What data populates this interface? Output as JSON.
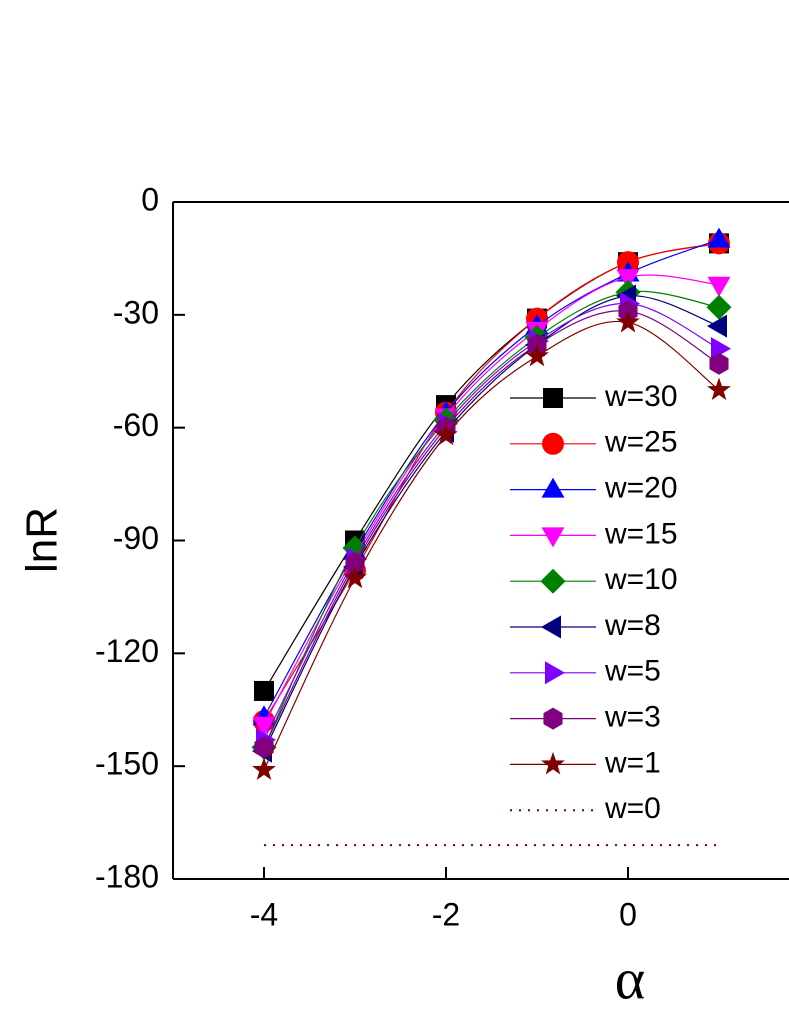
{
  "chart_data": {
    "type": "line",
    "x_label": "α",
    "y_label": "lnR",
    "x": [
      -4,
      -3,
      -2,
      -1,
      0,
      1
    ],
    "xlim": [
      -5,
      1.8
    ],
    "ylim": [
      -180,
      0
    ],
    "xticks": [
      -4,
      -2,
      0
    ],
    "yticks": [
      0,
      -30,
      -60,
      -90,
      -120,
      -150,
      -180
    ],
    "series": [
      {
        "name": "w=30",
        "color": "#000000",
        "marker": "square",
        "values": [
          -130,
          -90,
          -54,
          -31,
          -16,
          -11
        ]
      },
      {
        "name": "w=25",
        "color": "#ff0000",
        "marker": "circle",
        "values": [
          -138,
          -98,
          -56,
          -31,
          -16,
          -11
        ]
      },
      {
        "name": "w=20",
        "color": "#0000ff",
        "marker": "triangle-up",
        "values": [
          -137,
          -93,
          -56,
          -33,
          -19,
          -10
        ]
      },
      {
        "name": "w=15",
        "color": "#ff00ff",
        "marker": "triangle-down",
        "values": [
          -139,
          -94,
          -57,
          -34,
          -20,
          -22
        ]
      },
      {
        "name": "w=10",
        "color": "#008000",
        "marker": "diamond",
        "values": [
          -145,
          -92,
          -58,
          -36,
          -24,
          -28
        ]
      },
      {
        "name": "w=8",
        "color": "#000080",
        "marker": "triangle-left",
        "values": [
          -146,
          -97,
          -61,
          -38,
          -25,
          -33
        ]
      },
      {
        "name": "w=5",
        "color": "#8000ff",
        "marker": "triangle-right",
        "values": [
          -143,
          -95,
          -59,
          -37,
          -27,
          -39
        ]
      },
      {
        "name": "w=3",
        "color": "#800080",
        "marker": "hexagon",
        "values": [
          -145,
          -96,
          -60,
          -38,
          -29,
          -43
        ]
      },
      {
        "name": "w=1",
        "color": "#800000",
        "marker": "star",
        "values": [
          -151,
          -100,
          -62,
          -41,
          -32,
          -50
        ]
      },
      {
        "name": "w=0",
        "color": "#800000",
        "marker": "none",
        "dash": "dotted",
        "values": [
          -171,
          -171,
          -171,
          -171,
          -171,
          -171
        ]
      }
    ]
  }
}
